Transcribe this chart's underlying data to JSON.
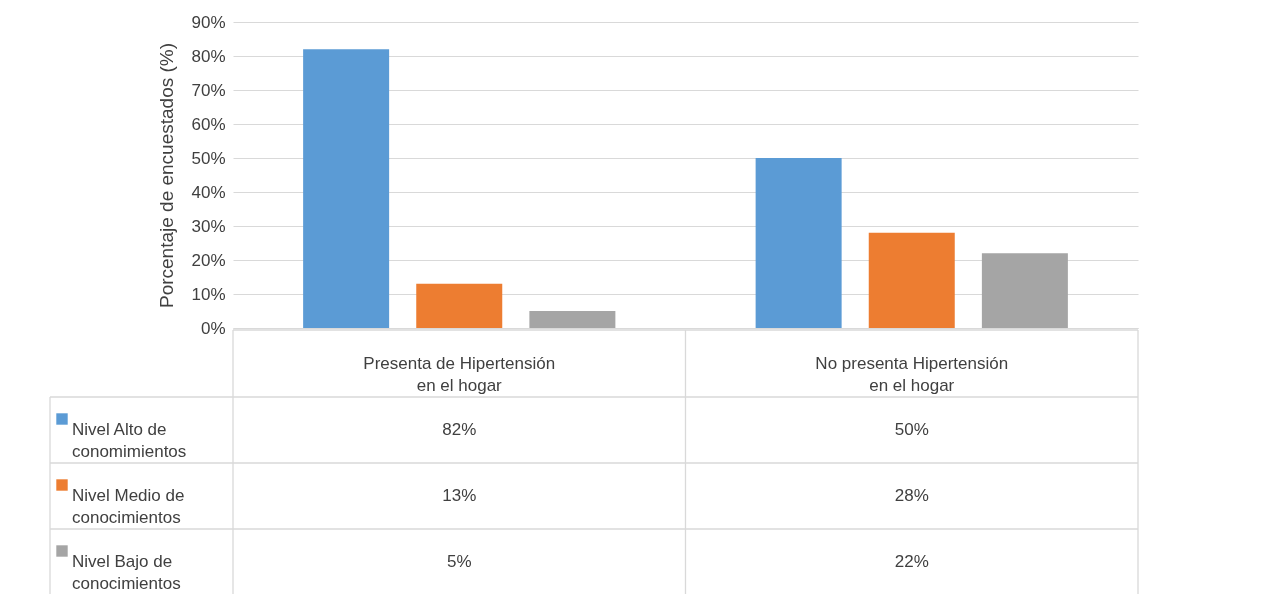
{
  "chart_data": {
    "type": "bar",
    "ylabel": "Porcentaje de encuestados (%)",
    "categories": [
      "Presenta de Hipertensión en el hogar",
      "No presenta Hipertensión en el hogar"
    ],
    "series": [
      {
        "name": "Nivel Alto de conomimientos",
        "color": "#5b9bd5",
        "values": [
          82,
          50
        ],
        "value_labels": [
          "82%",
          "50%"
        ]
      },
      {
        "name": "Nivel Medio de conocimientos",
        "color": "#ed7d31",
        "values": [
          13,
          28
        ],
        "value_labels": [
          "13%",
          "28%"
        ]
      },
      {
        "name": "Nivel Bajo de conocimientos",
        "color": "#a5a5a5",
        "values": [
          5,
          22
        ],
        "value_labels": [
          "5%",
          "22%"
        ]
      }
    ],
    "ylim": [
      0,
      90
    ],
    "yticks": [
      {
        "value": 0,
        "label": "0%"
      },
      {
        "value": 10,
        "label": "10%"
      },
      {
        "value": 20,
        "label": "20%"
      },
      {
        "value": 30,
        "label": "30%"
      },
      {
        "value": 40,
        "label": "40%"
      },
      {
        "value": 50,
        "label": "50%"
      },
      {
        "value": 60,
        "label": "60%"
      },
      {
        "value": 70,
        "label": "70%"
      },
      {
        "value": 80,
        "label": "80%"
      },
      {
        "value": 90,
        "label": "90%"
      }
    ],
    "grid": "y",
    "legend": "bottom"
  }
}
